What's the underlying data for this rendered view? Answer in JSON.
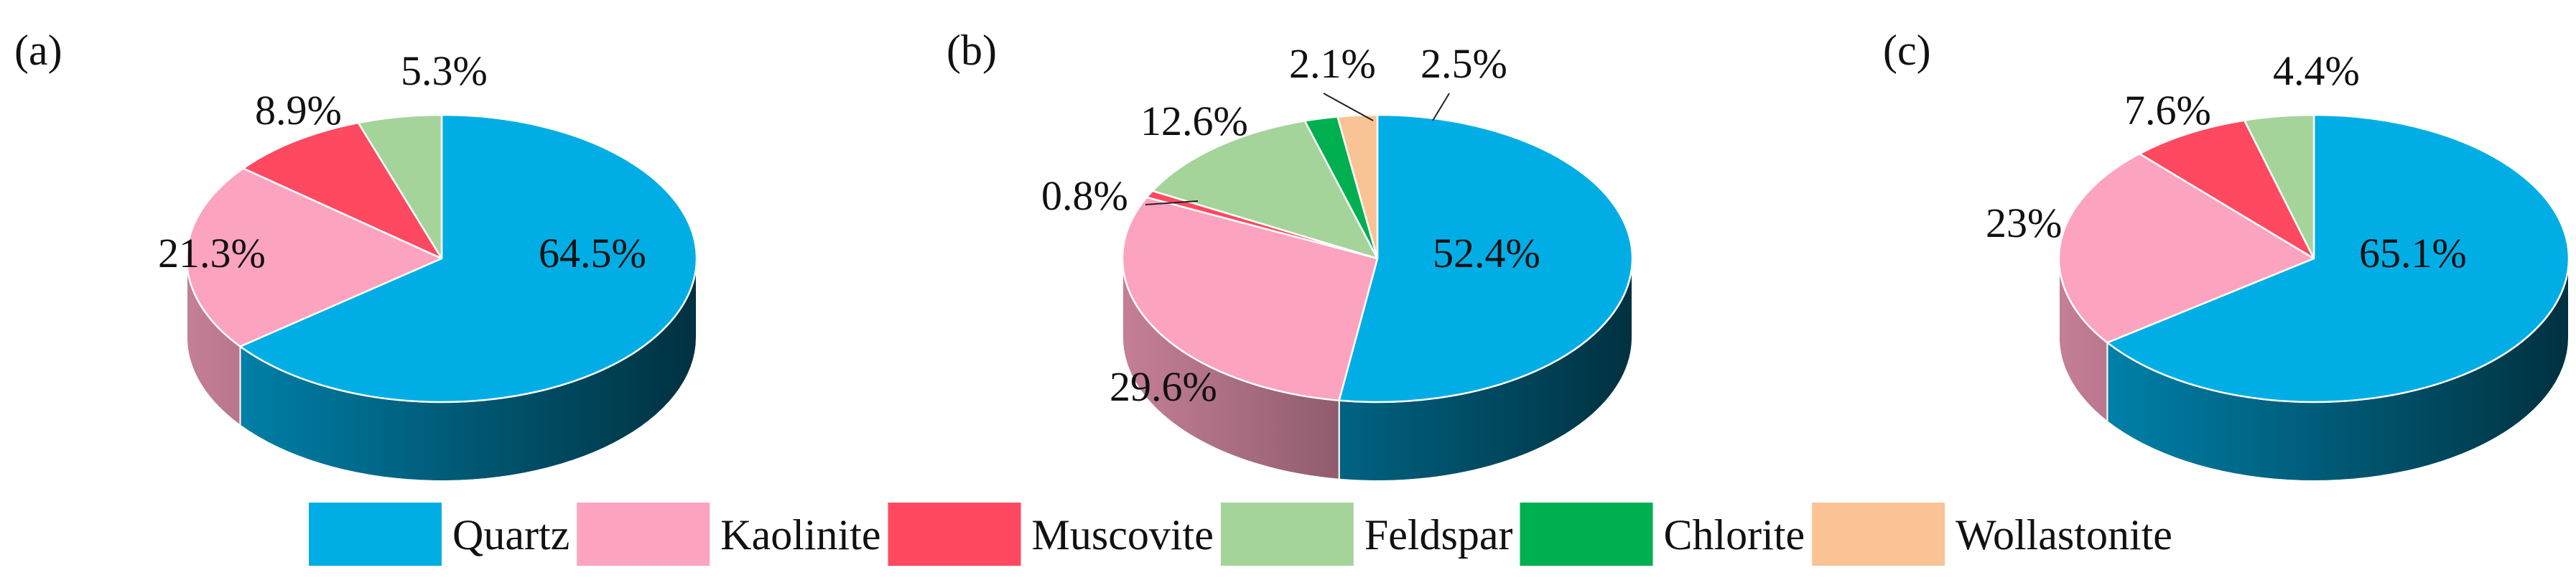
{
  "legend": {
    "position": "bottom",
    "items": [
      {
        "name": "Quartz",
        "color": "#00aee5"
      },
      {
        "name": "Kaolinite",
        "color": "#fca3c0"
      },
      {
        "name": "Muscovite",
        "color": "#fe4961"
      },
      {
        "name": "Feldspar",
        "color": "#a5d49b"
      },
      {
        "name": "Chlorite",
        "color": "#00b050"
      },
      {
        "name": "Wollastonite",
        "color": "#f9c395"
      }
    ]
  },
  "chart_data": [
    {
      "type": "pie",
      "panel_label": "(a)",
      "slices": [
        {
          "category": "Quartz",
          "value": 64.5,
          "label": "64.5%"
        },
        {
          "category": "Kaolinite",
          "value": 21.3,
          "label": "21.3%"
        },
        {
          "category": "Muscovite",
          "value": 8.9,
          "label": "8.9%"
        },
        {
          "category": "Feldspar",
          "value": 5.3,
          "label": "5.3%"
        }
      ]
    },
    {
      "type": "pie",
      "panel_label": "(b)",
      "slices": [
        {
          "category": "Quartz",
          "value": 52.4,
          "label": "52.4%"
        },
        {
          "category": "Kaolinite",
          "value": 29.6,
          "label": "29.6%"
        },
        {
          "category": "Muscovite",
          "value": 0.8,
          "label": "0.8%"
        },
        {
          "category": "Feldspar",
          "value": 12.6,
          "label": "12.6%"
        },
        {
          "category": "Chlorite",
          "value": 2.1,
          "label": "2.1%"
        },
        {
          "category": "Wollastonite",
          "value": 2.5,
          "label": "2.5%"
        }
      ]
    },
    {
      "type": "pie",
      "panel_label": "(c)",
      "slices": [
        {
          "category": "Quartz",
          "value": 65.1,
          "label": "65.1%"
        },
        {
          "category": "Kaolinite",
          "value": 23,
          "label": "23%"
        },
        {
          "category": "Muscovite",
          "value": 7.6,
          "label": "7.6%"
        },
        {
          "category": "Feldspar",
          "value": 4.4,
          "label": "4.4%"
        }
      ]
    }
  ]
}
